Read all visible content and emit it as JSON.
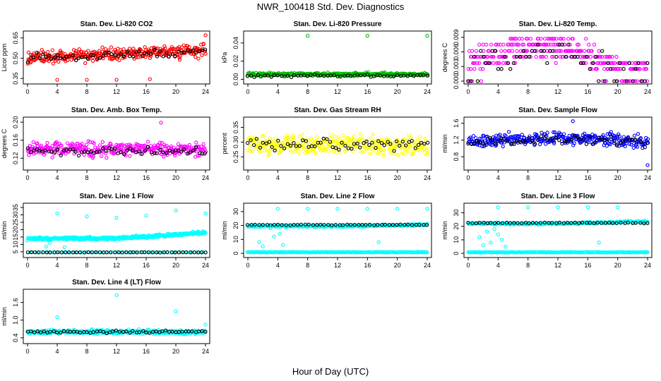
{
  "figure": {
    "title": "NWR_100418  Std. Dev. Diagnostics",
    "xlabel": "Hour of Day (UTC)"
  },
  "chart_data": [
    {
      "type": "scatter",
      "title": "Stan. Dev. Li-820 CO2",
      "ylabel": "Licor ppm",
      "xlim": [
        0,
        24
      ],
      "ylim": [
        0.33,
        0.68
      ],
      "xticks": [
        0,
        4,
        8,
        12,
        16,
        20,
        24
      ],
      "yticks": [
        0.35,
        0.5,
        0.65
      ],
      "ytick_labels": [
        "0.35",
        "0.50",
        "0.65"
      ],
      "color": "#ff0000",
      "series": [
        {
          "name": "color",
          "pattern": "noise",
          "n": 330,
          "base": 0.5,
          "trend": 0.06,
          "spread": 0.07,
          "seed": 11
        },
        {
          "name": "black",
          "pattern": "noise",
          "n": 60,
          "base": 0.5,
          "trend": 0.05,
          "spread": 0.05,
          "seed": 12
        }
      ],
      "outliers": [
        [
          4.0,
          0.34
        ],
        [
          8.0,
          0.34
        ],
        [
          12.0,
          0.34
        ],
        [
          16.5,
          0.345
        ],
        [
          24.0,
          0.67
        ]
      ]
    },
    {
      "type": "scatter",
      "title": "Stan. Dev. Li-820 Pressure",
      "ylabel": "kPa",
      "xlim": [
        0,
        24
      ],
      "ylim": [
        -0.002,
        0.05
      ],
      "xticks": [
        0,
        4,
        8,
        12,
        16,
        20,
        24
      ],
      "yticks": [
        0.0,
        0.02,
        0.04
      ],
      "ytick_labels": [
        "0.00",
        "0.02",
        "0.04"
      ],
      "color": "#00bb00",
      "series": [
        {
          "name": "color",
          "pattern": "noise",
          "n": 330,
          "base": 0.0055,
          "trend": 0.0,
          "spread": 0.0025,
          "seed": 21
        },
        {
          "name": "black",
          "pattern": "noise",
          "n": 55,
          "base": 0.004,
          "trend": 0.0,
          "spread": 0.002,
          "seed": 22
        }
      ],
      "outliers": [
        [
          8.0,
          0.048
        ],
        [
          16.0,
          0.048
        ],
        [
          24.0,
          0.048
        ]
      ]
    },
    {
      "type": "scatter",
      "title": "Stan. Dev. Li-820 Temp.",
      "ylabel": "degrees C",
      "xlim": [
        0,
        24
      ],
      "ylim": [
        0.0,
        0.0097
      ],
      "xticks": [
        0,
        4,
        8,
        12,
        16,
        20,
        24
      ],
      "yticks": [
        0.0,
        0.003,
        0.006,
        0.009
      ],
      "ytick_labels": [
        "0.000",
        "0.003",
        "0.006",
        "0.009"
      ],
      "color": "#ff00ff",
      "series": [
        {
          "name": "color",
          "pattern": "levels",
          "n": 330,
          "levels": [
            0.0,
            0.0025,
            0.0037,
            0.005,
            0.0062,
            0.0075,
            0.0087
          ],
          "hump": true,
          "seed": 31
        },
        {
          "name": "black",
          "pattern": "levels",
          "n": 60,
          "levels": [
            0.0,
            0.0025,
            0.0037,
            0.005,
            0.0062,
            0.0075
          ],
          "hump": true,
          "seed": 32
        }
      ],
      "outliers": []
    },
    {
      "type": "scatter",
      "title": "Stan. Dev. Amb. Box Temp.",
      "ylabel": "degrees C",
      "xlim": [
        0,
        24
      ],
      "ylim": [
        0.1,
        0.205
      ],
      "xticks": [
        0,
        4,
        8,
        12,
        16,
        20,
        24
      ],
      "yticks": [
        0.12,
        0.16,
        0.2
      ],
      "ytick_labels": [
        "0.12",
        "0.16",
        "0.20"
      ],
      "color": "#ff00ff",
      "series": [
        {
          "name": "color",
          "pattern": "noise",
          "n": 330,
          "base": 0.14,
          "trend": 0.0,
          "spread": 0.022,
          "seed": 41
        },
        {
          "name": "black",
          "pattern": "noise",
          "n": 60,
          "base": 0.135,
          "trend": 0.0,
          "spread": 0.014,
          "seed": 42
        }
      ],
      "outliers": [
        [
          18.0,
          0.199
        ]
      ]
    },
    {
      "type": "scatter",
      "title": "Stan. Dev. Gas Stream RH",
      "ylabel": "percent",
      "xlim": [
        0,
        24
      ],
      "ylim": [
        0.215,
        0.375
      ],
      "xticks": [
        0,
        4,
        8,
        12,
        16,
        20,
        24
      ],
      "yticks": [
        0.25,
        0.3,
        0.35
      ],
      "ytick_labels": [
        "0.25",
        "0.30",
        "0.35"
      ],
      "color": "#ffff00",
      "series": [
        {
          "name": "color",
          "pattern": "noise",
          "n": 330,
          "base": 0.29,
          "trend": 0.0,
          "spread": 0.045,
          "seed": 51
        },
        {
          "name": "black",
          "pattern": "noise",
          "n": 60,
          "base": 0.29,
          "trend": 0.0,
          "spread": 0.03,
          "seed": 52
        }
      ],
      "outliers": []
    },
    {
      "type": "scatter",
      "title": "Stan. Dev. Sample Flow",
      "ylabel": "ml/min",
      "xlim": [
        0,
        24
      ],
      "ylim": [
        0.55,
        1.68
      ],
      "xticks": [
        0,
        4,
        8,
        12,
        16,
        20,
        24
      ],
      "yticks": [
        0.8,
        1.2,
        1.6
      ],
      "ytick_labels": [
        "0.8",
        "1.2",
        "1.6"
      ],
      "color": "#0000ff",
      "series": [
        {
          "name": "color",
          "pattern": "noise",
          "n": 330,
          "base": 1.15,
          "trend": 0.0,
          "spread": 0.22,
          "hump": true,
          "seed": 61
        },
        {
          "name": "black",
          "pattern": "noise",
          "n": 60,
          "base": 1.12,
          "trend": 0.0,
          "spread": 0.14,
          "hump": true,
          "seed": 62
        }
      ],
      "outliers": [
        [
          14.0,
          1.65
        ],
        [
          24.0,
          0.6
        ]
      ]
    },
    {
      "type": "scatter",
      "title": "Stan. Dev. Line 1 Flow",
      "ylabel": "ml/min",
      "xlim": [
        0,
        24
      ],
      "ylim": [
        3.0,
        36.0
      ],
      "xticks": [
        0,
        4,
        8,
        12,
        16,
        20,
        24
      ],
      "yticks": [
        5,
        10,
        15,
        20,
        25,
        30,
        35
      ],
      "ytick_labels": [
        "5",
        "10",
        "15",
        "20",
        "25",
        "30",
        "35"
      ],
      "color": "#00ffff",
      "series": [
        {
          "name": "color",
          "pattern": "band",
          "n": 420,
          "base": 14.0,
          "rise": 4.0,
          "spread": 1.4,
          "seed": 71
        },
        {
          "name": "black",
          "pattern": "flat",
          "n": 48,
          "value": 4.6,
          "jitter": 0.15,
          "seed": 72
        },
        {
          "name": "color-low",
          "pattern": "flat",
          "n": 80,
          "value": 4.6,
          "jitter": 0.15,
          "seed": 73
        }
      ],
      "outliers": [
        [
          2.5,
          8.5
        ],
        [
          3.0,
          11.0
        ],
        [
          4.0,
          31.0
        ],
        [
          5.0,
          8.0
        ],
        [
          8.0,
          29.0
        ],
        [
          12.0,
          28.0
        ],
        [
          16.0,
          29.5
        ],
        [
          20.0,
          33.0
        ],
        [
          24.0,
          31.0
        ]
      ]
    },
    {
      "type": "scatter",
      "title": "Stan. Dev. Line 2 Flow",
      "ylabel": "ml/min",
      "xlim": [
        0,
        24
      ],
      "ylim": [
        -1.0,
        34.0
      ],
      "xticks": [
        0,
        4,
        8,
        12,
        16,
        20,
        24
      ],
      "yticks": [
        0,
        10,
        20,
        30
      ],
      "ytick_labels": [
        "0",
        "10",
        "20",
        "30"
      ],
      "color": "#00ffff",
      "series": [
        {
          "name": "color",
          "pattern": "band",
          "n": 320,
          "base": 19.5,
          "rise": 1.0,
          "spread": 1.0,
          "seed": 81
        },
        {
          "name": "color-low",
          "pattern": "flat",
          "n": 260,
          "value": 0.8,
          "jitter": 0.3,
          "seed": 82
        },
        {
          "name": "black",
          "pattern": "flat",
          "n": 48,
          "value": 20.5,
          "jitter": 0.4,
          "seed": 83
        }
      ],
      "outliers": [
        [
          1.5,
          8.0
        ],
        [
          2.0,
          5.0
        ],
        [
          3.0,
          18.0
        ],
        [
          3.5,
          12.0
        ],
        [
          4.0,
          32.0
        ],
        [
          4.3,
          14.0
        ],
        [
          4.7,
          6.0
        ],
        [
          8.0,
          32.0
        ],
        [
          12.0,
          32.0
        ],
        [
          16.0,
          32.0
        ],
        [
          17.5,
          8.0
        ],
        [
          20.0,
          32.0
        ],
        [
          24.0,
          32.0
        ]
      ]
    },
    {
      "type": "scatter",
      "title": "Stan. Dev. Line 3 Flow",
      "ylabel": "ml/min",
      "xlim": [
        0,
        24
      ],
      "ylim": [
        -1.0,
        35.0
      ],
      "xticks": [
        0,
        4,
        8,
        12,
        16,
        20,
        24
      ],
      "yticks": [
        0,
        10,
        20,
        30
      ],
      "ytick_labels": [
        "0",
        "10",
        "20",
        "30"
      ],
      "color": "#00ffff",
      "series": [
        {
          "name": "color",
          "pattern": "band",
          "n": 320,
          "base": 22.0,
          "rise": 1.5,
          "spread": 1.0,
          "seed": 91
        },
        {
          "name": "color-low",
          "pattern": "flat",
          "n": 260,
          "value": 0.8,
          "jitter": 0.3,
          "seed": 92
        },
        {
          "name": "black",
          "pattern": "flat",
          "n": 48,
          "value": 22.5,
          "jitter": 0.5,
          "seed": 93
        }
      ],
      "outliers": [
        [
          1.5,
          12.0
        ],
        [
          2.0,
          6.0
        ],
        [
          2.5,
          16.0
        ],
        [
          3.0,
          8.0
        ],
        [
          3.5,
          18.0
        ],
        [
          4.0,
          14.0
        ],
        [
          4.5,
          10.0
        ],
        [
          5.0,
          5.0
        ],
        [
          4.0,
          34.0
        ],
        [
          8.0,
          34.0
        ],
        [
          12.0,
          34.0
        ],
        [
          16.0,
          34.0
        ],
        [
          17.5,
          8.0
        ],
        [
          20.0,
          34.0
        ]
      ]
    },
    {
      "type": "scatter",
      "title": "Stan. Dev. Line 4 (LT) Flow",
      "ylabel": "ml/min",
      "xlim": [
        0,
        24
      ],
      "ylim": [
        0.3,
        1.95
      ],
      "xticks": [
        0,
        4,
        8,
        12,
        16,
        20,
        24
      ],
      "yticks": [
        0.4,
        1.0,
        1.6
      ],
      "ytick_labels": [
        "0.4",
        "1.0",
        "1.6"
      ],
      "color": "#00ffff",
      "series": [
        {
          "name": "color",
          "pattern": "noise",
          "n": 420,
          "base": 0.6,
          "trend": 0.0,
          "spread": 0.1,
          "seed": 101
        },
        {
          "name": "black",
          "pattern": "noise",
          "n": 55,
          "base": 0.6,
          "trend": 0.0,
          "spread": 0.06,
          "seed": 102
        }
      ],
      "outliers": [
        [
          4.0,
          1.1
        ],
        [
          12.0,
          1.85
        ],
        [
          20.0,
          1.3
        ],
        [
          24.0,
          0.85
        ]
      ]
    }
  ]
}
